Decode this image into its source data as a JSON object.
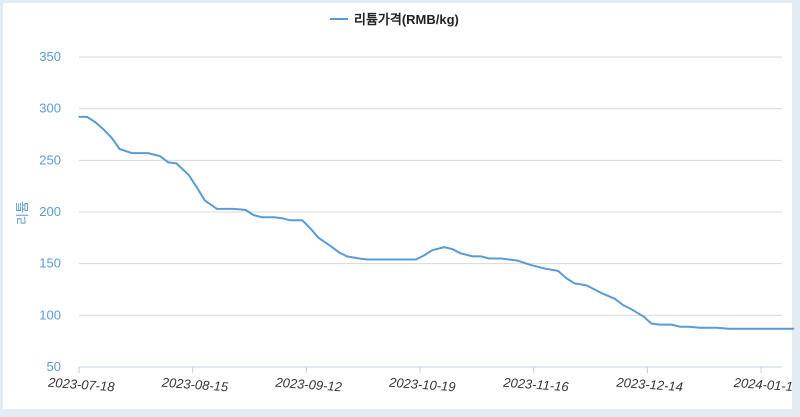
{
  "chart_data": {
    "type": "line",
    "legend": "리튬가격(RMB/kg)",
    "legend_position": "top-center",
    "ylabel": "리튬",
    "xlabel": "",
    "ylim": [
      50,
      350
    ],
    "yticks": [
      "350",
      "300",
      "250",
      "200",
      "150",
      "100",
      "50"
    ],
    "xticks": [
      "2023-07-18",
      "2023-08-15",
      "2023-09-12",
      "2023-10-19",
      "2023-11-16",
      "2023-12-14",
      "2024-01-1"
    ],
    "grid": "horizontal",
    "line_color": "#5b9bd5",
    "series": [
      {
        "name": "리튬가격(RMB/kg)",
        "x": [
          "2023-07-18",
          "2023-07-20",
          "2023-07-22",
          "2023-07-24",
          "2023-07-26",
          "2023-07-28",
          "2023-07-31",
          "2023-08-02",
          "2023-08-04",
          "2023-08-07",
          "2023-08-09",
          "2023-08-11",
          "2023-08-14",
          "2023-08-16",
          "2023-08-18",
          "2023-08-21",
          "2023-08-23",
          "2023-08-25",
          "2023-08-28",
          "2023-08-30",
          "2023-09-01",
          "2023-09-04",
          "2023-09-06",
          "2023-09-08",
          "2023-09-11",
          "2023-09-13",
          "2023-09-15",
          "2023-09-18",
          "2023-09-20",
          "2023-09-22",
          "2023-09-25",
          "2023-09-27",
          "2023-10-09",
          "2023-10-11",
          "2023-10-13",
          "2023-10-16",
          "2023-10-18",
          "2023-10-20",
          "2023-10-23",
          "2023-10-25",
          "2023-10-27",
          "2023-10-30",
          "2023-11-01",
          "2023-11-03",
          "2023-11-06",
          "2023-11-08",
          "2023-11-10",
          "2023-11-13",
          "2023-11-15",
          "2023-11-17",
          "2023-11-20",
          "2023-11-22",
          "2023-11-24",
          "2023-11-27",
          "2023-11-29",
          "2023-12-01",
          "2023-12-04",
          "2023-12-06",
          "2023-12-08",
          "2023-12-11",
          "2023-12-13",
          "2023-12-15",
          "2023-12-18",
          "2023-12-20",
          "2023-12-22",
          "2023-12-25",
          "2023-12-27",
          "2023-12-29",
          "2024-01-02",
          "2024-01-04",
          "2024-01-08",
          "2024-01-10"
        ],
        "values": [
          292,
          292,
          287,
          280,
          272,
          261,
          257,
          257,
          257,
          254,
          248,
          247,
          236,
          224,
          211,
          203,
          203,
          203,
          202,
          197,
          195,
          195,
          194,
          192,
          192,
          184,
          175,
          167,
          161,
          157,
          155,
          154,
          154,
          158,
          163,
          166,
          164,
          160,
          157,
          157,
          155,
          155,
          154,
          153,
          149,
          147,
          145,
          143,
          136,
          131,
          129,
          125,
          121,
          116,
          110,
          106,
          99,
          92,
          91,
          91,
          89,
          89,
          88,
          88,
          88,
          87,
          87,
          87,
          87,
          87,
          87,
          87
        ]
      }
    ]
  }
}
